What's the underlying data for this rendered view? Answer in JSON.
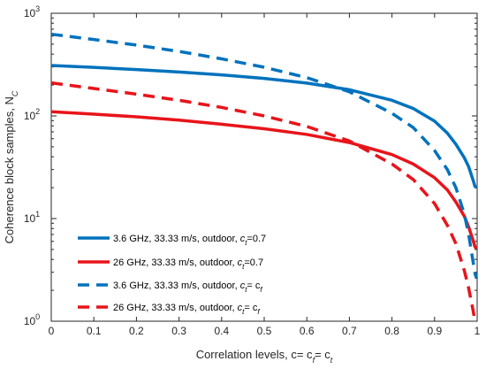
{
  "chart_data": {
    "type": "line",
    "title": "",
    "xlabel": "Correlation levels,  c= c_f= c_t",
    "ylabel": "Coherence block samples, N_C",
    "xlim": [
      0,
      1
    ],
    "ylim": [
      1,
      1000
    ],
    "yscale": "log",
    "grid": false,
    "legend_position": "bottom-left",
    "x_ticks": [
      "0",
      "0.1",
      "0.2",
      "0.3",
      "0.4",
      "0.5",
      "0.6",
      "0.7",
      "0.8",
      "0.9",
      "1"
    ],
    "x_tick_values": [
      0,
      0.1,
      0.2,
      0.3,
      0.4,
      0.5,
      0.6,
      0.7,
      0.8,
      0.9,
      1
    ],
    "y_ticks": [
      {
        "value": 1,
        "base": "10",
        "exp": "0"
      },
      {
        "value": 10,
        "base": "10",
        "exp": "1"
      },
      {
        "value": 100,
        "base": "10",
        "exp": "2"
      },
      {
        "value": 1000,
        "base": "10",
        "exp": "3"
      }
    ],
    "x": [
      0,
      0.1,
      0.2,
      0.3,
      0.4,
      0.5,
      0.6,
      0.7,
      0.8,
      0.85,
      0.9,
      0.93,
      0.95,
      0.97,
      0.98,
      0.99,
      0.995,
      0.999
    ],
    "series": [
      {
        "label_text": "3.6 GHz, 33.33 m/s, outdoor, ",
        "label_var": "c",
        "label_sub": "t",
        "label_tail": "=0.7",
        "color": "#0072BD",
        "dashed": false,
        "values": [
          310,
          297,
          283,
          268,
          251,
          232,
          209,
          180,
          142,
          118,
          89,
          68,
          53,
          39,
          32,
          24,
          20.5,
          20
        ]
      },
      {
        "label_text": "26 GHz, 33.33 m/s, outdoor, ",
        "label_var": "c",
        "label_sub": "t",
        "label_tail": "=0.7",
        "color": "#E8141A",
        "dashed": false,
        "values": [
          110,
          104,
          98,
          91,
          83,
          75,
          66,
          55,
          42,
          34,
          25,
          19,
          14.5,
          10.5,
          8.3,
          6.2,
          5.3,
          5.1
        ]
      },
      {
        "label_text": "3.6 GHz, 33.33 m/s, outdoor,  ",
        "label_var": "c",
        "label_sub": "t",
        "label_tail": "= c",
        "label_tail_sub": "f",
        "color": "#0072BD",
        "dashed": true,
        "values": [
          625,
          555,
          490,
          425,
          360,
          298,
          236,
          172,
          106,
          77,
          46,
          30,
          20,
          11,
          7,
          3.9,
          2.9,
          2.6
        ]
      },
      {
        "label_text": "26 GHz, 33.33 m/s, outdoor,  ",
        "label_var": "c",
        "label_sub": "t",
        "label_tail": "= c",
        "label_tail_sub": "f",
        "color": "#E8141A",
        "dashed": true,
        "values": [
          210,
          185,
          163,
          142,
          121,
          100,
          79,
          57,
          34,
          24,
          14,
          8.6,
          5.7,
          3.1,
          2.1,
          1.3,
          1.0,
          0.95
        ]
      }
    ]
  }
}
